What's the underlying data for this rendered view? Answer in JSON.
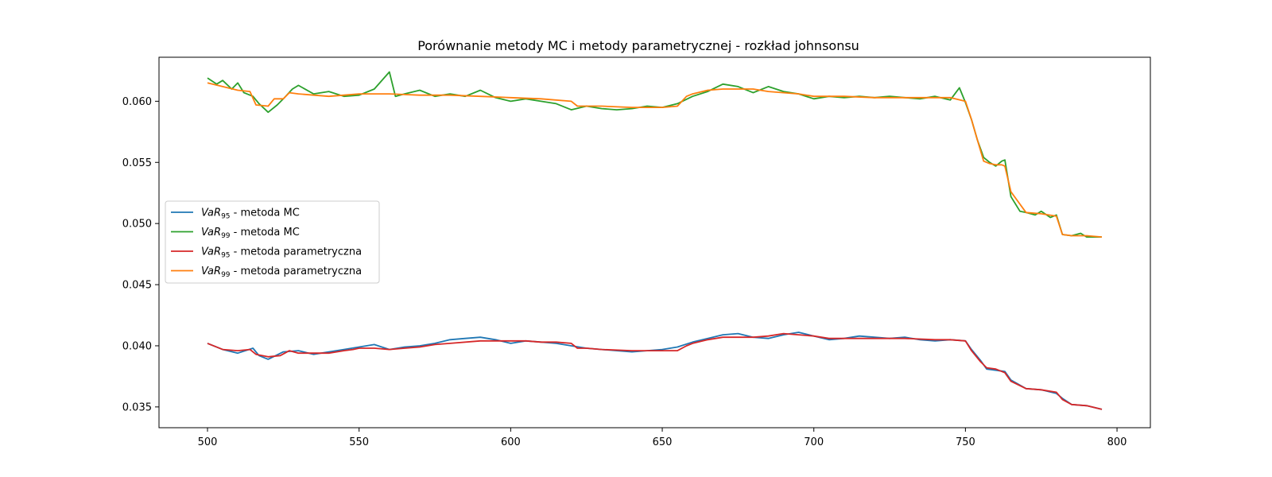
{
  "chart_data": {
    "type": "line",
    "title": "Porównanie metody MC i metody parametrycznej - rozkład johnsonsu",
    "xlabel": "",
    "ylabel": "",
    "xlim": [
      484,
      811
    ],
    "ylim": [
      0.0333,
      0.0636
    ],
    "x_ticks": [
      500,
      550,
      600,
      650,
      700,
      750,
      800
    ],
    "y_ticks": [
      0.035,
      0.04,
      0.045,
      0.05,
      0.055,
      0.06
    ],
    "y_tick_labels": [
      "0.035",
      "0.040",
      "0.045",
      "0.050",
      "0.055",
      "0.060"
    ],
    "grid": false,
    "legend_position": "center-left",
    "series": [
      {
        "name": "VaR95 - metoda MC",
        "label_var": "VaR",
        "label_sub": "95",
        "label_rest": " - metoda MC",
        "color": "#1f77b4",
        "x": [
          500,
          505,
          510,
          515,
          517,
          520,
          525,
          530,
          535,
          540,
          545,
          550,
          555,
          560,
          565,
          570,
          575,
          580,
          585,
          590,
          595,
          600,
          605,
          610,
          615,
          620,
          625,
          630,
          635,
          640,
          645,
          650,
          655,
          660,
          665,
          670,
          675,
          680,
          685,
          690,
          695,
          700,
          705,
          710,
          715,
          720,
          725,
          730,
          735,
          740,
          745,
          750,
          752,
          755,
          757,
          760,
          763,
          765,
          770,
          775,
          780,
          782,
          785,
          790,
          795
        ],
        "values": [
          0.0402,
          0.0397,
          0.0394,
          0.0398,
          0.0392,
          0.0389,
          0.0395,
          0.0396,
          0.0393,
          0.0395,
          0.0397,
          0.0399,
          0.0401,
          0.0397,
          0.0399,
          0.04,
          0.0402,
          0.0405,
          0.0406,
          0.0407,
          0.0405,
          0.0402,
          0.0404,
          0.0403,
          0.0402,
          0.04,
          0.0398,
          0.0397,
          0.0396,
          0.0395,
          0.0396,
          0.0397,
          0.0399,
          0.0403,
          0.0406,
          0.0409,
          0.041,
          0.0407,
          0.0406,
          0.0409,
          0.0411,
          0.0408,
          0.0405,
          0.0406,
          0.0408,
          0.0407,
          0.0406,
          0.0407,
          0.0405,
          0.0404,
          0.0405,
          0.0404,
          0.0397,
          0.0388,
          0.0381,
          0.038,
          0.0379,
          0.0372,
          0.0365,
          0.0364,
          0.0361,
          0.0357,
          0.0352,
          0.0351,
          0.0348
        ]
      },
      {
        "name": "VaR99 - metoda MC",
        "label_var": "VaR",
        "label_sub": "99",
        "label_rest": " - metoda MC",
        "color": "#2ca02c",
        "x": [
          500,
          503,
          505,
          508,
          510,
          512,
          515,
          517,
          520,
          523,
          525,
          528,
          530,
          535,
          540,
          545,
          550,
          555,
          560,
          562,
          565,
          570,
          575,
          580,
          585,
          590,
          595,
          600,
          605,
          610,
          615,
          620,
          625,
          630,
          635,
          640,
          645,
          650,
          655,
          660,
          665,
          670,
          675,
          680,
          685,
          690,
          695,
          700,
          705,
          710,
          715,
          720,
          725,
          730,
          735,
          740,
          745,
          748,
          750,
          752,
          754,
          756,
          758,
          760,
          762,
          763,
          765,
          768,
          770,
          773,
          775,
          778,
          780,
          782,
          785,
          788,
          790,
          795
        ],
        "values": [
          0.0619,
          0.0614,
          0.0617,
          0.061,
          0.0615,
          0.0607,
          0.0604,
          0.0598,
          0.0591,
          0.0597,
          0.0602,
          0.061,
          0.0613,
          0.0606,
          0.0608,
          0.0604,
          0.0605,
          0.061,
          0.0624,
          0.0604,
          0.0606,
          0.0609,
          0.0604,
          0.0606,
          0.0604,
          0.0609,
          0.0603,
          0.06,
          0.0602,
          0.06,
          0.0598,
          0.0593,
          0.0596,
          0.0594,
          0.0593,
          0.0594,
          0.0596,
          0.0595,
          0.0598,
          0.0604,
          0.0608,
          0.0614,
          0.0612,
          0.0607,
          0.0612,
          0.0608,
          0.0606,
          0.0602,
          0.0604,
          0.0603,
          0.0604,
          0.0603,
          0.0604,
          0.0603,
          0.0602,
          0.0604,
          0.0601,
          0.0611,
          0.0599,
          0.0585,
          0.0568,
          0.0554,
          0.055,
          0.0547,
          0.0551,
          0.0552,
          0.0522,
          0.051,
          0.0509,
          0.0507,
          0.051,
          0.0505,
          0.0507,
          0.0491,
          0.049,
          0.0492,
          0.0489,
          0.0489
        ]
      },
      {
        "name": "VaR95 - metoda parametryczna",
        "label_var": "VaR",
        "label_sub": "95",
        "label_rest": " - metoda parametryczna",
        "color": "#d62728",
        "x": [
          500,
          505,
          510,
          514,
          516,
          520,
          524,
          527,
          530,
          540,
          545,
          548,
          550,
          555,
          560,
          565,
          570,
          575,
          580,
          590,
          600,
          605,
          610,
          615,
          620,
          622,
          625,
          630,
          640,
          645,
          650,
          655,
          658,
          660,
          665,
          670,
          680,
          685,
          690,
          695,
          700,
          705,
          710,
          720,
          730,
          740,
          745,
          750,
          752,
          755,
          757,
          760,
          763,
          765,
          770,
          775,
          780,
          782,
          785,
          790,
          795
        ],
        "values": [
          0.0402,
          0.0397,
          0.0396,
          0.0397,
          0.0393,
          0.0391,
          0.0392,
          0.0396,
          0.0394,
          0.0394,
          0.0396,
          0.0397,
          0.0398,
          0.0398,
          0.0397,
          0.0398,
          0.0399,
          0.0401,
          0.0402,
          0.0404,
          0.0404,
          0.0404,
          0.0403,
          0.0403,
          0.0402,
          0.0398,
          0.0398,
          0.0397,
          0.0396,
          0.0396,
          0.0396,
          0.0396,
          0.04,
          0.0402,
          0.0405,
          0.0407,
          0.0407,
          0.0408,
          0.041,
          0.0409,
          0.0408,
          0.0406,
          0.0406,
          0.0406,
          0.0406,
          0.0405,
          0.0405,
          0.0404,
          0.0396,
          0.0387,
          0.0382,
          0.0381,
          0.0378,
          0.0371,
          0.0365,
          0.0364,
          0.0362,
          0.0356,
          0.0352,
          0.0351,
          0.0348
        ]
      },
      {
        "name": "VaR99 - metoda parametryczna",
        "label_var": "VaR",
        "label_sub": "99",
        "label_rest": " - metoda parametryczna",
        "color": "#ff7f0e",
        "x": [
          500,
          505,
          510,
          514,
          516,
          520,
          522,
          525,
          527,
          530,
          540,
          545,
          550,
          560,
          570,
          580,
          590,
          600,
          610,
          620,
          622,
          630,
          640,
          650,
          655,
          658,
          660,
          665,
          670,
          680,
          685,
          690,
          695,
          700,
          710,
          720,
          730,
          740,
          745,
          750,
          752,
          754,
          756,
          758,
          760,
          762,
          763,
          765,
          770,
          775,
          780,
          782,
          785,
          790,
          795
        ],
        "values": [
          0.0615,
          0.0612,
          0.0609,
          0.0608,
          0.0597,
          0.0596,
          0.0602,
          0.0602,
          0.0607,
          0.0606,
          0.0604,
          0.0605,
          0.0606,
          0.0606,
          0.0605,
          0.0605,
          0.0604,
          0.0603,
          0.0602,
          0.06,
          0.0596,
          0.0596,
          0.0595,
          0.0595,
          0.0596,
          0.0604,
          0.0606,
          0.0609,
          0.061,
          0.061,
          0.0608,
          0.0607,
          0.0606,
          0.0604,
          0.0604,
          0.0603,
          0.0603,
          0.0603,
          0.0603,
          0.06,
          0.0585,
          0.0568,
          0.0551,
          0.0549,
          0.0548,
          0.0548,
          0.0547,
          0.0526,
          0.0509,
          0.0508,
          0.0506,
          0.0491,
          0.049,
          0.049,
          0.0489
        ]
      }
    ]
  }
}
